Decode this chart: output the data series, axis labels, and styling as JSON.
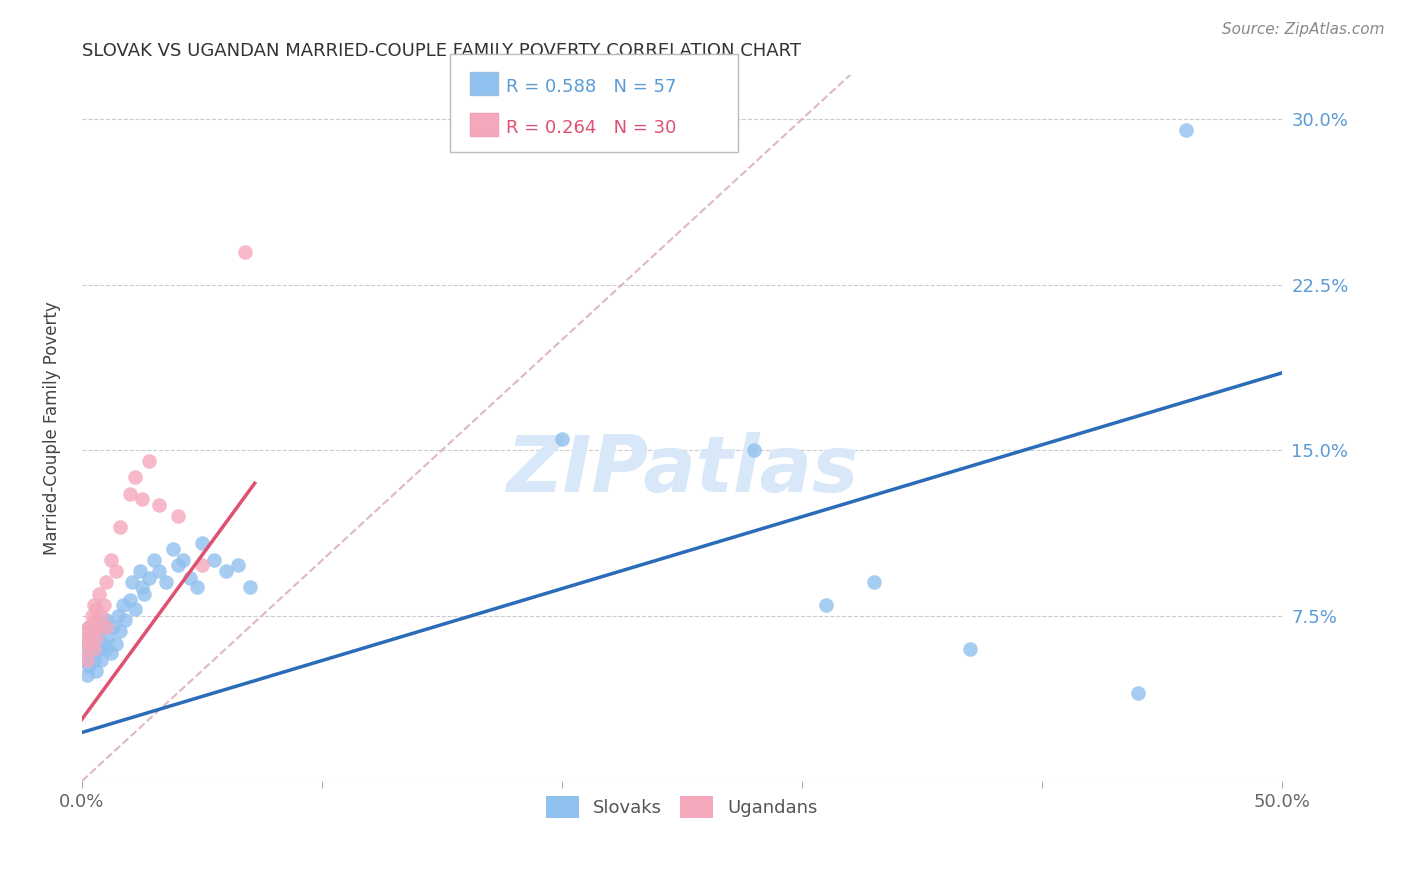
{
  "title": "SLOVAK VS UGANDAN MARRIED-COUPLE FAMILY POVERTY CORRELATION CHART",
  "source": "Source: ZipAtlas.com",
  "ylabel": "Married-Couple Family Poverty",
  "xlim": [
    0.0,
    0.5
  ],
  "ylim": [
    0.0,
    0.32
  ],
  "yticks": [
    0.0,
    0.075,
    0.15,
    0.225,
    0.3
  ],
  "ytick_labels": [
    "",
    "7.5%",
    "15.0%",
    "22.5%",
    "30.0%"
  ],
  "xticks": [
    0.0,
    0.1,
    0.2,
    0.3,
    0.4,
    0.5
  ],
  "xtick_labels": [
    "0.0%",
    "",
    "",
    "",
    "",
    "50.0%"
  ],
  "color_slovak": "#90C0EE",
  "color_ugandan": "#F5A8BC",
  "color_slovak_line": "#2B6CB8",
  "color_ugandan_line": "#E05070",
  "color_diagonal": "#D4A0B0",
  "watermark_color": "#D8E8F8",
  "slovak_line_x": [
    0.0,
    0.5
  ],
  "slovak_line_y": [
    0.022,
    0.185
  ],
  "ugandan_line_x": [
    0.0,
    0.072
  ],
  "ugandan_line_y": [
    0.028,
    0.135
  ],
  "slovak_x": [
    0.001,
    0.001,
    0.002,
    0.002,
    0.003,
    0.003,
    0.003,
    0.004,
    0.004,
    0.005,
    0.005,
    0.006,
    0.006,
    0.006,
    0.007,
    0.007,
    0.008,
    0.008,
    0.009,
    0.009,
    0.01,
    0.01,
    0.011,
    0.012,
    0.013,
    0.014,
    0.015,
    0.016,
    0.017,
    0.018,
    0.02,
    0.021,
    0.022,
    0.024,
    0.025,
    0.026,
    0.028,
    0.03,
    0.032,
    0.035,
    0.038,
    0.04,
    0.042,
    0.045,
    0.048,
    0.05,
    0.055,
    0.06,
    0.065,
    0.07,
    0.2,
    0.28,
    0.31,
    0.33,
    0.37,
    0.44,
    0.46
  ],
  "slovak_y": [
    0.055,
    0.062,
    0.048,
    0.065,
    0.052,
    0.06,
    0.07,
    0.058,
    0.068,
    0.055,
    0.063,
    0.05,
    0.065,
    0.072,
    0.06,
    0.068,
    0.055,
    0.07,
    0.062,
    0.072,
    0.06,
    0.073,
    0.065,
    0.058,
    0.07,
    0.062,
    0.075,
    0.068,
    0.08,
    0.073,
    0.082,
    0.09,
    0.078,
    0.095,
    0.088,
    0.085,
    0.092,
    0.1,
    0.095,
    0.09,
    0.105,
    0.098,
    0.1,
    0.092,
    0.088,
    0.108,
    0.1,
    0.095,
    0.098,
    0.088,
    0.155,
    0.15,
    0.08,
    0.09,
    0.06,
    0.04,
    0.295
  ],
  "ugandan_x": [
    0.001,
    0.001,
    0.002,
    0.002,
    0.003,
    0.003,
    0.004,
    0.004,
    0.005,
    0.005,
    0.005,
    0.006,
    0.006,
    0.007,
    0.007,
    0.008,
    0.009,
    0.01,
    0.01,
    0.012,
    0.014,
    0.016,
    0.02,
    0.022,
    0.025,
    0.028,
    0.032,
    0.04,
    0.05,
    0.068
  ],
  "ugandan_y": [
    0.06,
    0.068,
    0.055,
    0.065,
    0.062,
    0.07,
    0.068,
    0.075,
    0.06,
    0.072,
    0.08,
    0.065,
    0.078,
    0.07,
    0.085,
    0.075,
    0.08,
    0.07,
    0.09,
    0.1,
    0.095,
    0.115,
    0.13,
    0.138,
    0.128,
    0.145,
    0.125,
    0.12,
    0.098,
    0.24
  ]
}
